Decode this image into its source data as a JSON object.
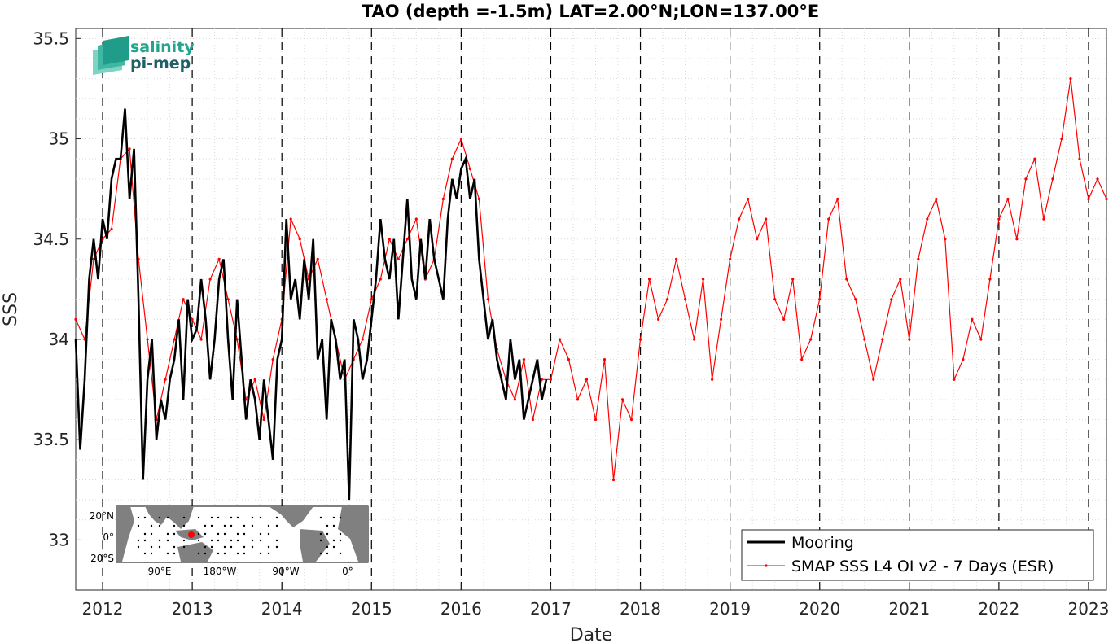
{
  "chart_data": {
    "type": "line",
    "title": "TAO (depth =-1.5m) LAT=2.00°N;LON=137.00°E",
    "xlabel": "Date",
    "ylabel": "SSS",
    "ylim": [
      32.75,
      35.55
    ],
    "xlim": [
      2011.7,
      2023.2
    ],
    "yticks": [
      33,
      33.5,
      34,
      34.5,
      35,
      35.5
    ],
    "xticks": [
      2012,
      2013,
      2014,
      2015,
      2016,
      2017,
      2018,
      2019,
      2020,
      2021,
      2022,
      2023
    ],
    "grid": "dotted minor grid; dashed vertical lines at year boundaries",
    "legend_position": "bottom-right",
    "series": [
      {
        "name": "Mooring",
        "color": "#000000",
        "x": [
          2011.7,
          2011.75,
          2011.8,
          2011.85,
          2011.9,
          2011.95,
          2012.0,
          2012.05,
          2012.1,
          2012.15,
          2012.2,
          2012.25,
          2012.3,
          2012.35,
          2012.4,
          2012.45,
          2012.5,
          2012.55,
          2012.6,
          2012.65,
          2012.7,
          2012.75,
          2012.8,
          2012.85,
          2012.9,
          2012.95,
          2013.0,
          2013.05,
          2013.1,
          2013.15,
          2013.2,
          2013.25,
          2013.3,
          2013.35,
          2013.4,
          2013.45,
          2013.5,
          2013.55,
          2013.6,
          2013.65,
          2013.7,
          2013.75,
          2013.8,
          2013.85,
          2013.9,
          2013.95,
          2014.0,
          2014.05,
          2014.1,
          2014.15,
          2014.2,
          2014.25,
          2014.3,
          2014.35,
          2014.4,
          2014.45,
          2014.5,
          2014.55,
          2014.6,
          2014.65,
          2014.7,
          2014.75,
          2014.8,
          2014.85,
          2014.9,
          2014.95,
          2015.0,
          2015.05,
          2015.1,
          2015.15,
          2015.2,
          2015.25,
          2015.3,
          2015.35,
          2015.4,
          2015.45,
          2015.5,
          2015.55,
          2015.6,
          2015.65,
          2015.7,
          2015.75,
          2015.8,
          2015.85,
          2015.9,
          2015.95,
          2016.0,
          2016.05,
          2016.1,
          2016.15,
          2016.2,
          2016.25,
          2016.3,
          2016.35,
          2016.4,
          2016.45,
          2016.5,
          2016.55,
          2016.6,
          2016.65,
          2016.7,
          2016.75,
          2016.8,
          2016.85,
          2016.9,
          2016.95
        ],
        "y": [
          34.0,
          33.45,
          33.8,
          34.3,
          34.5,
          34.3,
          34.6,
          34.5,
          34.8,
          34.9,
          34.9,
          35.15,
          34.7,
          34.95,
          34.2,
          33.3,
          33.8,
          34.0,
          33.5,
          33.7,
          33.6,
          33.8,
          33.9,
          34.1,
          33.7,
          34.2,
          34.0,
          34.05,
          34.3,
          34.1,
          33.8,
          34.0,
          34.3,
          34.4,
          34.0,
          33.7,
          34.2,
          33.9,
          33.6,
          33.8,
          33.7,
          33.5,
          33.8,
          33.6,
          33.4,
          33.9,
          34.0,
          34.6,
          34.2,
          34.3,
          34.1,
          34.4,
          34.2,
          34.5,
          33.9,
          34.0,
          33.6,
          34.1,
          34.0,
          33.8,
          33.9,
          33.2,
          34.1,
          34.0,
          33.8,
          33.9,
          34.1,
          34.3,
          34.6,
          34.4,
          34.3,
          34.5,
          34.1,
          34.4,
          34.7,
          34.3,
          34.2,
          34.5,
          34.3,
          34.6,
          34.4,
          34.3,
          34.2,
          34.6,
          34.8,
          34.7,
          34.85,
          34.9,
          34.7,
          34.8,
          34.4,
          34.2,
          34.0,
          34.1,
          33.9,
          33.8,
          33.7,
          34.0,
          33.8,
          33.9,
          33.6,
          33.7,
          33.8,
          33.9,
          33.7,
          33.8
        ]
      },
      {
        "name": "SMAP SSS L4 OI v2 - 7 Days (ESR)",
        "color": "#ff0000",
        "x": [
          2011.7,
          2011.8,
          2011.9,
          2012.0,
          2012.1,
          2012.2,
          2012.3,
          2012.4,
          2012.5,
          2012.6,
          2012.7,
          2012.8,
          2012.9,
          2013.0,
          2013.1,
          2013.2,
          2013.3,
          2013.4,
          2013.5,
          2013.6,
          2013.7,
          2013.8,
          2013.9,
          2014.0,
          2014.1,
          2014.2,
          2014.3,
          2014.4,
          2014.5,
          2014.6,
          2014.7,
          2014.8,
          2014.9,
          2015.0,
          2015.1,
          2015.2,
          2015.3,
          2015.4,
          2015.5,
          2015.6,
          2015.7,
          2015.8,
          2015.9,
          2016.0,
          2016.1,
          2016.2,
          2016.3,
          2016.4,
          2016.5,
          2016.6,
          2016.7,
          2016.8,
          2016.9,
          2017.0,
          2017.1,
          2017.2,
          2017.3,
          2017.4,
          2017.5,
          2017.6,
          2017.7,
          2017.8,
          2017.9,
          2018.0,
          2018.1,
          2018.2,
          2018.3,
          2018.4,
          2018.5,
          2018.6,
          2018.7,
          2018.8,
          2018.9,
          2019.0,
          2019.1,
          2019.2,
          2019.3,
          2019.4,
          2019.5,
          2019.6,
          2019.7,
          2019.8,
          2019.9,
          2020.0,
          2020.1,
          2020.2,
          2020.3,
          2020.4,
          2020.5,
          2020.6,
          2020.7,
          2020.8,
          2020.9,
          2021.0,
          2021.1,
          2021.2,
          2021.3,
          2021.4,
          2021.5,
          2021.6,
          2021.7,
          2021.8,
          2021.9,
          2022.0,
          2022.1,
          2022.2,
          2022.3,
          2022.4,
          2022.5,
          2022.6,
          2022.7,
          2022.8,
          2022.9,
          2023.0,
          2023.1,
          2023.2
        ],
        "y": [
          34.1,
          34.0,
          34.4,
          34.5,
          34.55,
          34.9,
          34.95,
          34.4,
          34.0,
          33.6,
          33.8,
          34.0,
          34.2,
          34.1,
          34.0,
          34.3,
          34.4,
          34.2,
          34.0,
          33.7,
          33.8,
          33.6,
          33.9,
          34.1,
          34.6,
          34.5,
          34.3,
          34.4,
          34.2,
          34.0,
          33.8,
          33.9,
          34.0,
          34.2,
          34.3,
          34.5,
          34.4,
          34.5,
          34.6,
          34.3,
          34.4,
          34.7,
          34.9,
          35.0,
          34.85,
          34.7,
          34.2,
          33.95,
          33.8,
          33.7,
          33.9,
          33.6,
          33.8,
          33.8,
          34.0,
          33.9,
          33.7,
          33.8,
          33.6,
          33.9,
          33.3,
          33.7,
          33.6,
          34.0,
          34.3,
          34.1,
          34.2,
          34.4,
          34.2,
          34.0,
          34.3,
          33.8,
          34.1,
          34.4,
          34.6,
          34.7,
          34.5,
          34.6,
          34.2,
          34.1,
          34.3,
          33.9,
          34.0,
          34.2,
          34.6,
          34.7,
          34.3,
          34.2,
          34.0,
          33.8,
          34.0,
          34.2,
          34.3,
          34.0,
          34.4,
          34.6,
          34.7,
          34.5,
          33.8,
          33.9,
          34.1,
          34.0,
          34.3,
          34.6,
          34.7,
          34.5,
          34.8,
          34.9,
          34.6,
          34.8,
          35.0,
          35.3,
          34.9,
          34.7,
          34.8,
          34.7
        ]
      }
    ],
    "legend": [
      "Mooring",
      "SMAP SSS L4 OI v2 - 7 Days (ESR)"
    ]
  },
  "logo": {
    "line1": "salinity",
    "line2": "pi-mep"
  },
  "inset_map": {
    "y_labels": [
      "20°N",
      "0°",
      "20°S"
    ],
    "x_labels": [
      "90°E",
      "180°W",
      "90°W",
      "0°"
    ]
  }
}
